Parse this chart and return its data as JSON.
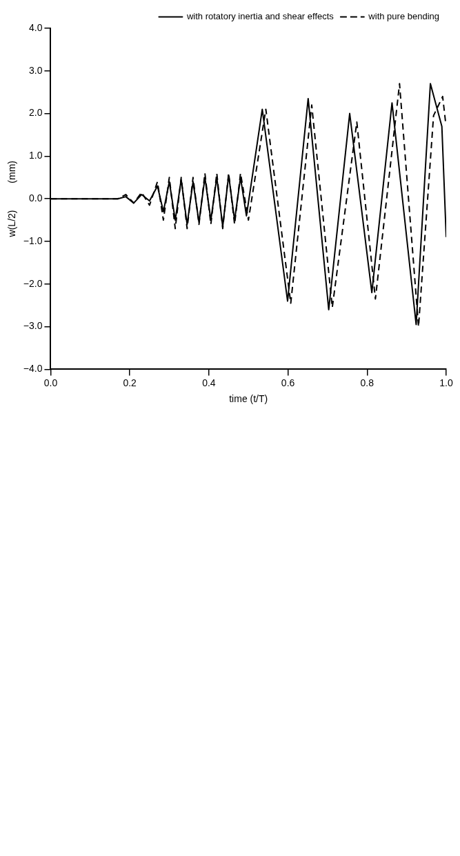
{
  "chart_data": {
    "type": "line",
    "xlabel": "time (t/T)",
    "ylabel": "w(L/2)          (mm)",
    "xlim": [
      0,
      1
    ],
    "xticks": [
      {
        "value": 0,
        "label": "0.0"
      },
      {
        "value": 0.2,
        "label": "0.2"
      },
      {
        "value": 0.4,
        "label": "0.4"
      },
      {
        "value": 0.6,
        "label": "0.6"
      },
      {
        "value": 0.8,
        "label": "0.8"
      },
      {
        "value": 1,
        "label": "1.0"
      }
    ],
    "ylim": [
      -4,
      4
    ],
    "yticks": [
      {
        "value": -4,
        "label": "−4.0"
      },
      {
        "value": -3,
        "label": "−3.0"
      },
      {
        "value": -2,
        "label": "−2.0"
      },
      {
        "value": -1,
        "label": "−1.0"
      },
      {
        "value": 0,
        "label": "0.0"
      },
      {
        "value": 1,
        "label": "1.0"
      },
      {
        "value": 2,
        "label": "2.0"
      },
      {
        "value": 3,
        "label": "3.0"
      },
      {
        "value": 4,
        "label": "4.0"
      }
    ],
    "grid": false,
    "legend": "top right",
    "marker": "none",
    "series": [
      {
        "name": "with rotatory inertia and shear effects",
        "color": "#000000",
        "line_style": "solid",
        "x": [
          0,
          0.17,
          0.19,
          0.21,
          0.23,
          0.25,
          0.27,
          0.285,
          0.3,
          0.315,
          0.33,
          0.345,
          0.36,
          0.375,
          0.39,
          0.405,
          0.42,
          0.435,
          0.45,
          0.465,
          0.48,
          0.495,
          0.535,
          0.599,
          0.651,
          0.703,
          0.756,
          0.812,
          0.863,
          0.924,
          0.96,
          0.989,
          1.0
        ],
        "values": [
          0,
          0,
          0.05,
          -0.1,
          0.1,
          -0.05,
          0.3,
          -0.3,
          0.4,
          -0.5,
          0.45,
          -0.6,
          0.4,
          -0.55,
          0.5,
          -0.5,
          0.5,
          -0.65,
          0.55,
          -0.5,
          0.5,
          -0.4,
          2.1,
          -2.4,
          2.35,
          -2.6,
          2.0,
          -2.2,
          2.25,
          -2.95,
          2.7,
          1.7,
          -0.9
        ]
      },
      {
        "name": "with pure bending",
        "color": "#000000",
        "line_style": "dashed",
        "x": [
          0,
          0.17,
          0.19,
          0.21,
          0.23,
          0.25,
          0.27,
          0.285,
          0.3,
          0.315,
          0.33,
          0.345,
          0.36,
          0.375,
          0.39,
          0.405,
          0.42,
          0.435,
          0.45,
          0.465,
          0.48,
          0.5,
          0.544,
          0.607,
          0.66,
          0.712,
          0.774,
          0.821,
          0.882,
          0.93,
          0.968,
          0.991,
          0.999
        ],
        "values": [
          0,
          0,
          0.1,
          -0.1,
          0.15,
          -0.15,
          0.4,
          -0.5,
          0.5,
          -0.7,
          0.5,
          -0.7,
          0.5,
          -0.6,
          0.6,
          -0.6,
          0.6,
          -0.7,
          0.6,
          -0.6,
          0.6,
          -0.5,
          2.1,
          -2.45,
          2.2,
          -2.55,
          1.8,
          -2.35,
          2.7,
          -3.0,
          1.95,
          2.4,
          1.75
        ]
      }
    ]
  }
}
